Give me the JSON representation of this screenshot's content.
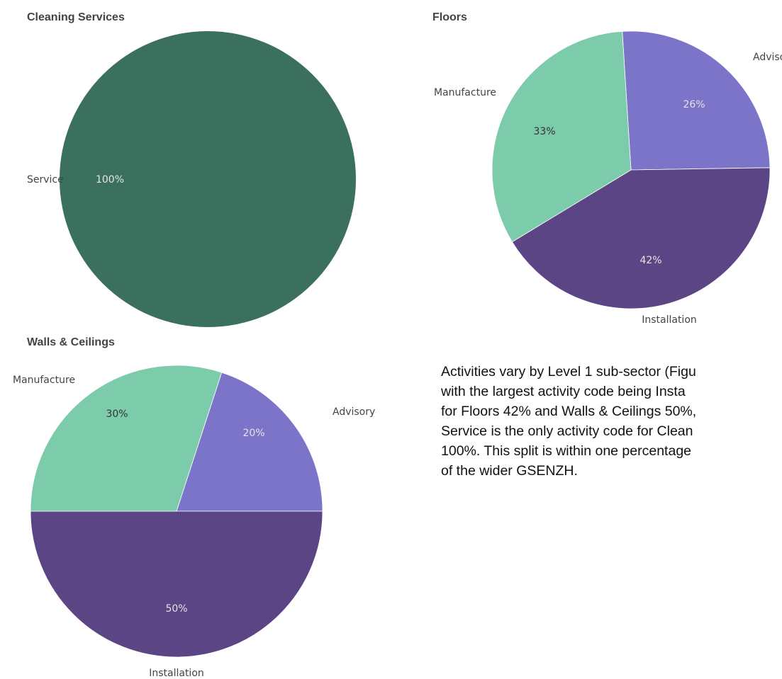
{
  "chart_data": [
    {
      "type": "pie",
      "title": "Cleaning Services",
      "categories": [
        "Service"
      ],
      "values": [
        100
      ],
      "value_labels": [
        "100%"
      ],
      "colors": [
        "#3b705e"
      ]
    },
    {
      "type": "pie",
      "title": "Floors",
      "categories": [
        "Advisory",
        "Installation",
        "Manufacture"
      ],
      "values": [
        26,
        42,
        33
      ],
      "value_labels": [
        "26%",
        "42%",
        "33%"
      ],
      "colors": [
        "#7b74c9",
        "#5b4585",
        "#7ccbab"
      ]
    },
    {
      "type": "pie",
      "title": "Walls & Ceilings",
      "categories": [
        "Advisory",
        "Installation",
        "Manufacture"
      ],
      "values": [
        20,
        50,
        30
      ],
      "value_labels": [
        "20%",
        "50%",
        "30%"
      ],
      "colors": [
        "#7b74c9",
        "#5b4585",
        "#7ccbab"
      ]
    }
  ],
  "paragraph": [
    "Activities vary by Level 1 sub-sector (Figu",
    "with the largest activity code being Insta",
    "for Floors 42% and Walls & Ceilings 50%,",
    "Service is the only activity code for Clean",
    "100%. This split is within one percentage",
    "of the wider GSENZH."
  ]
}
